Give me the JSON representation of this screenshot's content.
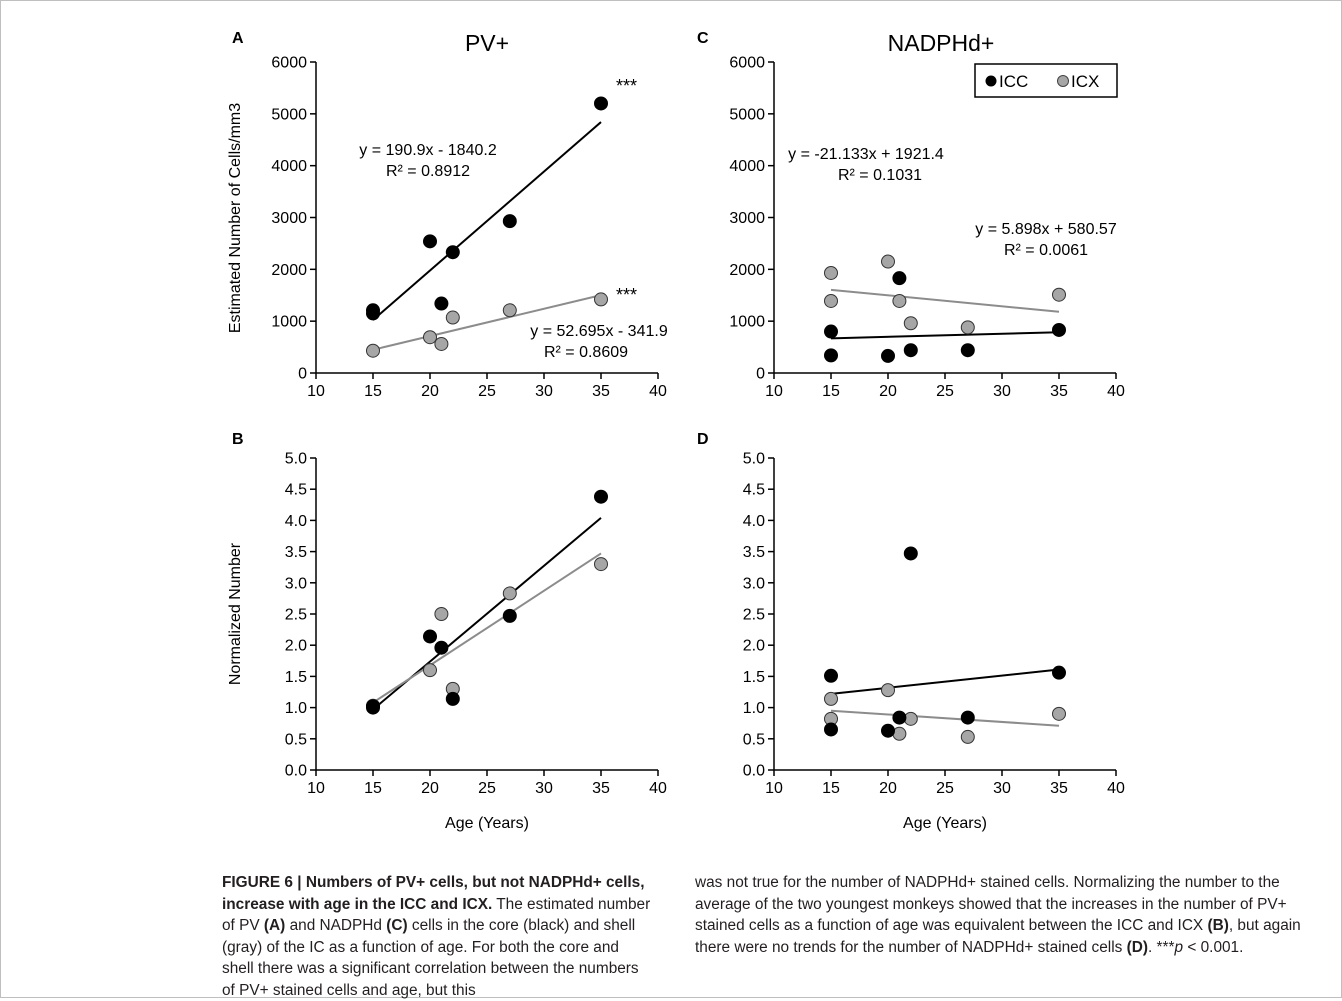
{
  "figure": {
    "panels": [
      {
        "letter": "A",
        "title": "PV+",
        "ylabel": "Estimated Number of Cells/mm3",
        "xlabel": "",
        "yticks": [
          "0",
          "1000",
          "2000",
          "3000",
          "4000",
          "5000",
          "6000"
        ],
        "xticks": [
          "10",
          "15",
          "20",
          "25",
          "30",
          "35",
          "40"
        ],
        "equations": [
          {
            "eq": "y = 190.9x - 1840.2",
            "r2": "R² = 0.8912"
          },
          {
            "eq": "y = 52.695x - 341.9",
            "r2": "R² = 0.8609"
          }
        ],
        "sig": [
          "***",
          "***"
        ]
      },
      {
        "letter": "C",
        "title": "NADPHd+",
        "ylabel": "",
        "xlabel": "",
        "yticks": [
          "0",
          "1000",
          "2000",
          "3000",
          "4000",
          "5000",
          "6000"
        ],
        "xticks": [
          "10",
          "15",
          "20",
          "25",
          "30",
          "35",
          "40"
        ],
        "equations": [
          {
            "eq": "y = -21.133x + 1921.4",
            "r2": "R² = 0.1031"
          },
          {
            "eq": "y = 5.898x + 580.57",
            "r2": "R² = 0.0061"
          }
        ],
        "legend": [
          "ICC",
          "ICX"
        ]
      },
      {
        "letter": "B",
        "title": "",
        "ylabel": "Normalized Number",
        "xlabel": "Age (Years)",
        "yticks": [
          "0.0",
          "0.5",
          "1.0",
          "1.5",
          "2.0",
          "2.5",
          "3.0",
          "3.5",
          "4.0",
          "4.5",
          "5.0"
        ],
        "xticks": [
          "10",
          "15",
          "20",
          "25",
          "30",
          "35",
          "40"
        ]
      },
      {
        "letter": "D",
        "title": "",
        "ylabel": "",
        "xlabel": "Age (Years)",
        "yticks": [
          "0.0",
          "0.5",
          "1.0",
          "1.5",
          "2.0",
          "2.5",
          "3.0",
          "3.5",
          "4.0",
          "4.5",
          "5.0"
        ],
        "xticks": [
          "10",
          "15",
          "20",
          "25",
          "30",
          "35",
          "40"
        ]
      }
    ]
  },
  "caption": {
    "title": "FIGURE 6 | Numbers of PV+ cells, but not NADPHd+ cells, increase with age in the ICC and ICX.",
    "left_text": " The estimated number of PV (A) and NADPHd (C) cells in the core (black) and shell (gray) of the IC as a function of age. For both the core and shell there was a significant correlation between the numbers of PV+ stained cells and age, but this",
    "right_text": "was not true for the number of NADPHd+ stained cells. Normalizing the number to the average of the two youngest monkeys showed that the increases in the number of PV+ stained cells as a function of age was equivalent between the ICC and ICX (B), but again there were no trends for the number of NADPHd+ stained cells (D). ***p < 0.001.",
    "parts": {
      "t1": "FIGURE 6 | Numbers of PV+ cells, but not NADPHd+ cells, increase with age in the ICC and ICX.",
      "l1": " The estimated number of PV ",
      "l2": "(A)",
      "l3": " and NADPHd ",
      "l4": "(C)",
      "l5": " cells in the core (black) and shell (gray) of the IC as a function of age. For both the core and shell there was a significant correlation between the numbers of PV+ stained cells and age, but this",
      "r1": "was not true for the number of NADPHd+ stained cells. Normalizing the number to the average of the two youngest monkeys showed that the increases in the number of PV+ stained cells as a function of age was equivalent between the ICC and ICX ",
      "r2": "(B)",
      "r3": ", but again there were no trends for the number of NADPHd+ stained cells ",
      "r4": "(D)",
      "r5": ". ***",
      "r6": "p",
      "r7": " < 0.001."
    }
  },
  "chart_data": [
    {
      "panel": "A",
      "type": "scatter",
      "title": "PV+",
      "ylabel": "Estimated Number of Cells/mm3",
      "xlim": [
        10,
        40
      ],
      "ylim": [
        0,
        6000
      ],
      "series": [
        {
          "name": "ICC",
          "color": "#000000",
          "x": [
            15,
            15,
            20,
            21,
            22,
            27,
            35
          ],
          "y": [
            1210,
            1150,
            2540,
            1340,
            2330,
            2930,
            5200
          ],
          "trend": {
            "slope": 190.9,
            "intercept": -1840.2
          }
        },
        {
          "name": "ICX",
          "color": "#a6a6a6",
          "x": [
            15,
            20,
            21,
            22,
            27,
            35
          ],
          "y": [
            430,
            690,
            560,
            1070,
            1210,
            1420
          ],
          "trend": {
            "slope": 52.695,
            "intercept": -341.9
          }
        }
      ]
    },
    {
      "panel": "C",
      "type": "scatter",
      "title": "NADPHd+",
      "xlim": [
        10,
        40
      ],
      "ylim": [
        0,
        6000
      ],
      "series": [
        {
          "name": "ICC",
          "color": "#000000",
          "x": [
            15,
            15,
            20,
            21,
            22,
            27,
            35
          ],
          "y": [
            800,
            340,
            330,
            1830,
            440,
            440,
            830
          ],
          "trend": {
            "slope": 5.898,
            "intercept": 580.57
          }
        },
        {
          "name": "ICX",
          "color": "#a6a6a6",
          "x": [
            15,
            15,
            20,
            21,
            22,
            27,
            35
          ],
          "y": [
            1930,
            1390,
            2150,
            1390,
            960,
            880,
            1510
          ],
          "trend": {
            "slope": -21.133,
            "intercept": 1921.4
          }
        }
      ]
    },
    {
      "panel": "B",
      "type": "scatter",
      "ylabel": "Normalized Number",
      "xlabel": "Age (Years)",
      "xlim": [
        10,
        40
      ],
      "ylim": [
        0,
        5
      ],
      "series": [
        {
          "name": "ICC",
          "color": "#000000",
          "x": [
            15,
            15,
            20,
            21,
            22,
            27,
            35
          ],
          "y": [
            1.0,
            1.02,
            2.14,
            1.96,
            1.14,
            2.47,
            4.38
          ],
          "trend": {
            "x": [
              15,
              35
            ],
            "y": [
              0.97,
              4.04
            ]
          }
        },
        {
          "name": "ICX",
          "color": "#a6a6a6",
          "x": [
            15,
            20,
            21,
            22,
            27,
            35
          ],
          "y": [
            1.03,
            1.6,
            2.5,
            1.3,
            2.83,
            3.3
          ],
          "trend": {
            "x": [
              15,
              35
            ],
            "y": [
              1.08,
              3.47
            ]
          }
        }
      ]
    },
    {
      "panel": "D",
      "type": "scatter",
      "xlabel": "Age (Years)",
      "xlim": [
        10,
        40
      ],
      "ylim": [
        0,
        5
      ],
      "series": [
        {
          "name": "ICC",
          "color": "#000000",
          "x": [
            15,
            15,
            20,
            21,
            22,
            27,
            35
          ],
          "y": [
            1.51,
            0.65,
            0.63,
            0.84,
            3.47,
            0.84,
            1.56
          ],
          "trend": {
            "x": [
              15,
              35
            ],
            "y": [
              1.22,
              1.61
            ]
          }
        },
        {
          "name": "ICX",
          "color": "#a6a6a6",
          "x": [
            15,
            15,
            20,
            21,
            22,
            27,
            35
          ],
          "y": [
            1.14,
            0.82,
            1.28,
            0.58,
            0.82,
            0.53,
            0.9
          ],
          "trend": {
            "x": [
              15,
              35
            ],
            "y": [
              0.95,
              0.71
            ]
          }
        }
      ]
    }
  ]
}
